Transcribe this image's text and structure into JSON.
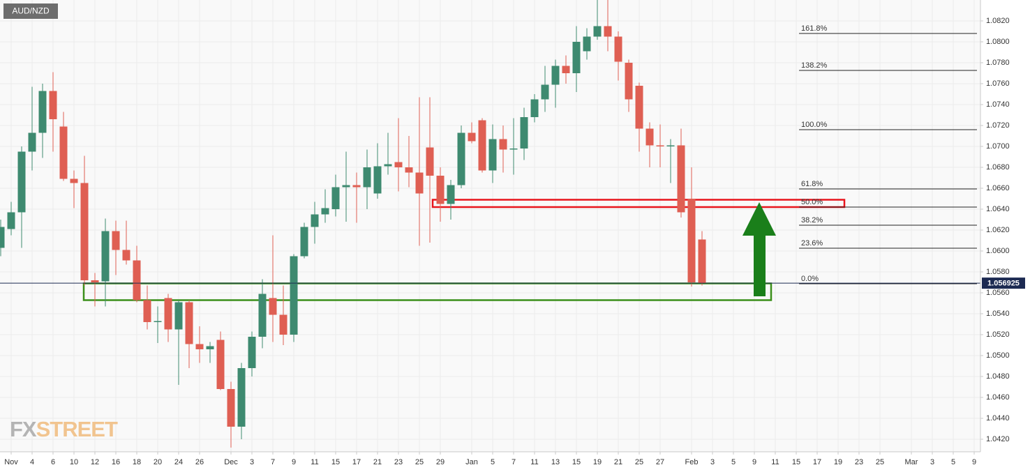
{
  "chart_data": {
    "type": "candlestick",
    "symbol": "AUD/NZD",
    "watermark_parts": [
      "FX",
      "STREET"
    ],
    "categories": [
      null,
      "Nov",
      null,
      "4",
      null,
      "6",
      null,
      "10",
      null,
      "12",
      null,
      "16",
      null,
      "18",
      null,
      "20",
      null,
      "24",
      null,
      "26",
      null,
      null,
      "Dec",
      null,
      "3",
      null,
      "7",
      null,
      "9",
      null,
      "11",
      null,
      "15",
      null,
      "17",
      null,
      "21",
      null,
      "23",
      null,
      "25",
      null,
      "29",
      null,
      null,
      "Jan",
      null,
      "5",
      null,
      "7",
      null,
      "11",
      null,
      "13",
      null,
      "15",
      null,
      "19",
      null,
      "21",
      null,
      "25",
      null,
      "27",
      null,
      null,
      "Feb",
      null,
      "3",
      null,
      "5",
      null,
      "9",
      null,
      "11",
      null,
      "15",
      null,
      "17",
      null,
      "19",
      null,
      "23",
      null,
      "25",
      null,
      null,
      "Mar",
      null,
      "3",
      null,
      "5",
      null,
      "9"
    ],
    "open": [
      1.0603,
      1.0621,
      1.0637,
      1.0695,
      1.0713,
      1.0753,
      1.0719,
      1.0669,
      1.0665,
      1.0572,
      1.0571,
      1.0619,
      1.0601,
      1.0591,
      1.0553,
      1.0532,
      1.0555,
      1.0525,
      1.0551,
      1.0511,
      1.0506,
      1.0515,
      1.0468,
      1.0432,
      1.0488,
      1.0518,
      1.0555,
      1.0539,
      1.052,
      1.0595,
      1.0623,
      1.0635,
      1.064,
      1.0661,
      1.0663,
      1.0661,
      1.0655,
      1.0681,
      1.0685,
      1.068,
      1.0675,
      1.0699,
      1.0672,
      1.0645,
      1.0663,
      1.0713,
      1.0725,
      1.0677,
      1.0707,
      1.0697,
      1.0698,
      1.0728,
      1.0745,
      1.0759,
      1.0777,
      1.077,
      1.0791,
      1.0805,
      1.0815,
      1.0805,
      1.078,
      1.0758,
      1.0717,
      1.0701,
      1.07,
      1.0701,
      1.065,
      1.0611,
      null,
      null,
      null,
      null,
      null,
      null,
      null,
      null,
      null,
      null,
      null,
      null,
      null,
      null,
      null,
      null,
      null,
      null,
      null,
      null,
      null,
      null,
      null,
      null,
      null,
      null
    ],
    "high": [
      1.063,
      1.0647,
      1.07,
      1.0757,
      1.076,
      1.0771,
      1.0733,
      1.0677,
      1.0691,
      1.0579,
      1.0631,
      1.0629,
      1.0629,
      1.0605,
      1.0567,
      1.0547,
      1.0559,
      1.0553,
      1.0553,
      1.0528,
      1.0513,
      1.0523,
      1.0475,
      1.0493,
      1.0523,
      1.0573,
      1.0615,
      1.0567,
      1.0597,
      1.0627,
      1.0647,
      1.0659,
      1.0673,
      1.0695,
      1.0675,
      1.0697,
      1.0703,
      1.0713,
      1.0727,
      1.071,
      1.0747,
      1.0747,
      1.068,
      1.0668,
      1.072,
      1.0723,
      1.0727,
      1.0721,
      1.072,
      1.0727,
      1.0737,
      1.075,
      1.0777,
      1.0783,
      1.0787,
      1.0815,
      1.0813,
      1.084,
      1.084,
      1.081,
      1.0783,
      1.0761,
      1.0723,
      1.0721,
      1.0707,
      1.0717,
      1.068,
      1.0619,
      null,
      null,
      null,
      null,
      null,
      null,
      null,
      null,
      null,
      null,
      null,
      null,
      null,
      null,
      null,
      null,
      null,
      null,
      null,
      null,
      null,
      null,
      null,
      null,
      null,
      null
    ],
    "low": [
      1.0595,
      1.0615,
      1.0603,
      1.0677,
      1.0689,
      1.0695,
      1.0667,
      1.0641,
      1.0567,
      1.0547,
      1.0547,
      1.0577,
      1.0587,
      1.0551,
      1.0525,
      1.0512,
      1.0513,
      1.0472,
      1.0488,
      1.0493,
      1.0493,
      1.0467,
      1.0412,
      1.042,
      1.048,
      1.0507,
      1.0513,
      1.051,
      1.0513,
      1.0593,
      1.0607,
      1.0627,
      1.0633,
      1.0628,
      1.0627,
      1.064,
      1.065,
      1.0673,
      1.0657,
      1.0661,
      1.0605,
      1.0608,
      1.0628,
      1.063,
      1.066,
      1.0703,
      1.0675,
      1.0665,
      1.0675,
      1.0673,
      1.0687,
      1.0723,
      1.0733,
      1.0737,
      1.076,
      1.0752,
      1.0783,
      1.0802,
      1.0791,
      1.0763,
      1.0733,
      1.0695,
      1.068,
      1.068,
      1.0665,
      1.0632,
      1.0566,
      1.0567,
      null,
      null,
      null,
      null,
      null,
      null,
      null,
      null,
      null,
      null,
      null,
      null,
      null,
      null,
      null,
      null,
      null,
      null,
      null,
      null,
      null,
      null,
      null,
      null,
      null,
      null
    ],
    "close": [
      1.0623,
      1.0637,
      1.0695,
      1.0713,
      1.0753,
      1.0726,
      1.0669,
      1.0665,
      1.0572,
      1.057,
      1.0619,
      1.0601,
      1.0591,
      1.0553,
      1.0532,
      1.0533,
      1.0525,
      1.0551,
      1.0511,
      1.0506,
      1.0509,
      1.0468,
      1.0432,
      1.0488,
      1.0518,
      1.0559,
      1.0539,
      1.052,
      1.0595,
      1.0623,
      1.0635,
      1.0641,
      1.0661,
      1.0663,
      1.0661,
      1.068,
      1.0681,
      1.0683,
      1.068,
      1.0675,
      1.0655,
      1.0672,
      1.0645,
      1.0663,
      1.0713,
      1.0705,
      1.0677,
      1.0707,
      1.0697,
      1.0698,
      1.0728,
      1.0745,
      1.0759,
      1.0777,
      1.077,
      1.08,
      1.0805,
      1.0815,
      1.0805,
      1.0781,
      1.0745,
      1.0717,
      1.0701,
      1.07,
      1.0701,
      1.0637,
      1.057,
      1.0569,
      null,
      null,
      null,
      null,
      null,
      null,
      null,
      null,
      null,
      null,
      null,
      null,
      null,
      null,
      null,
      null,
      null,
      null,
      null,
      null,
      null,
      null,
      null,
      null,
      null,
      null
    ],
    "up_color": "#3e8a70",
    "down_color": "#df5f53",
    "ylim": [
      1.0408,
      1.084
    ],
    "yticks": [
      {
        "value": 1.042,
        "label": "1.0420"
      },
      {
        "value": 1.044,
        "label": "1.0440"
      },
      {
        "value": 1.046,
        "label": "1.0460"
      },
      {
        "value": 1.048,
        "label": "1.0480"
      },
      {
        "value": 1.05,
        "label": "1.0500"
      },
      {
        "value": 1.052,
        "label": "1.0520"
      },
      {
        "value": 1.054,
        "label": "1.0540"
      },
      {
        "value": 1.056,
        "label": "1.0560"
      },
      {
        "value": 1.058,
        "label": "1.0580"
      },
      {
        "value": 1.06,
        "label": "1.0600"
      },
      {
        "value": 1.062,
        "label": "1.0620"
      },
      {
        "value": 1.064,
        "label": "1.0640"
      },
      {
        "value": 1.066,
        "label": "1.0660"
      },
      {
        "value": 1.068,
        "label": "1.0680"
      },
      {
        "value": 1.07,
        "label": "1.0700"
      },
      {
        "value": 1.072,
        "label": "1.0720"
      },
      {
        "value": 1.074,
        "label": "1.0740"
      },
      {
        "value": 1.076,
        "label": "1.0760"
      },
      {
        "value": 1.078,
        "label": "1.0780"
      },
      {
        "value": 1.08,
        "label": "1.0800"
      },
      {
        "value": 1.082,
        "label": "1.0820"
      }
    ],
    "grid": true,
    "current_price": 1.056925,
    "current_price_color": "#1c2a52",
    "fib_levels": [
      {
        "value": 1.0808,
        "label": "161.8%"
      },
      {
        "value": 1.07727,
        "label": "138.2%"
      },
      {
        "value": 1.0716,
        "label": "100.0%"
      },
      {
        "value": 1.06593,
        "label": "61.8%"
      },
      {
        "value": 1.0642,
        "label": "50.0%"
      },
      {
        "value": 1.06247,
        "label": "38.2%"
      },
      {
        "value": 1.06027,
        "label": "23.6%"
      },
      {
        "value": 1.05687,
        "label": "0.0%"
      }
    ],
    "zones": [
      {
        "range": [
          1.0642,
          1.0649
        ],
        "color": "#e8141c"
      },
      {
        "range": [
          1.0553,
          1.0569
        ],
        "color": "#3b8f1a"
      }
    ]
  }
}
